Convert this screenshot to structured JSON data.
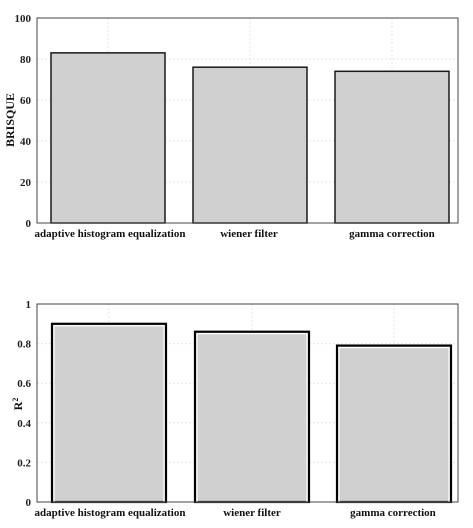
{
  "chart_data": [
    {
      "type": "bar",
      "categories": [
        "adaptive histogram equalization",
        "wiener filter",
        "gamma correction"
      ],
      "values": [
        83,
        76,
        74
      ],
      "ylabel": "BRISQUE",
      "ylim": [
        0,
        100
      ],
      "yticks": [
        "0",
        "20",
        "40",
        "60",
        "80",
        "100"
      ],
      "grid": true
    },
    {
      "type": "bar",
      "categories": [
        "adaptive histogram equalization",
        "wiener filter",
        "gamma correction"
      ],
      "values": [
        0.9,
        0.86,
        0.79
      ],
      "ylabel": "R",
      "ylabel_superscript": "2",
      "ylim": [
        0,
        1
      ],
      "yticks": [
        "0",
        "0.2",
        "0.4",
        "0.6",
        "0.8",
        "1"
      ],
      "grid": true
    }
  ]
}
